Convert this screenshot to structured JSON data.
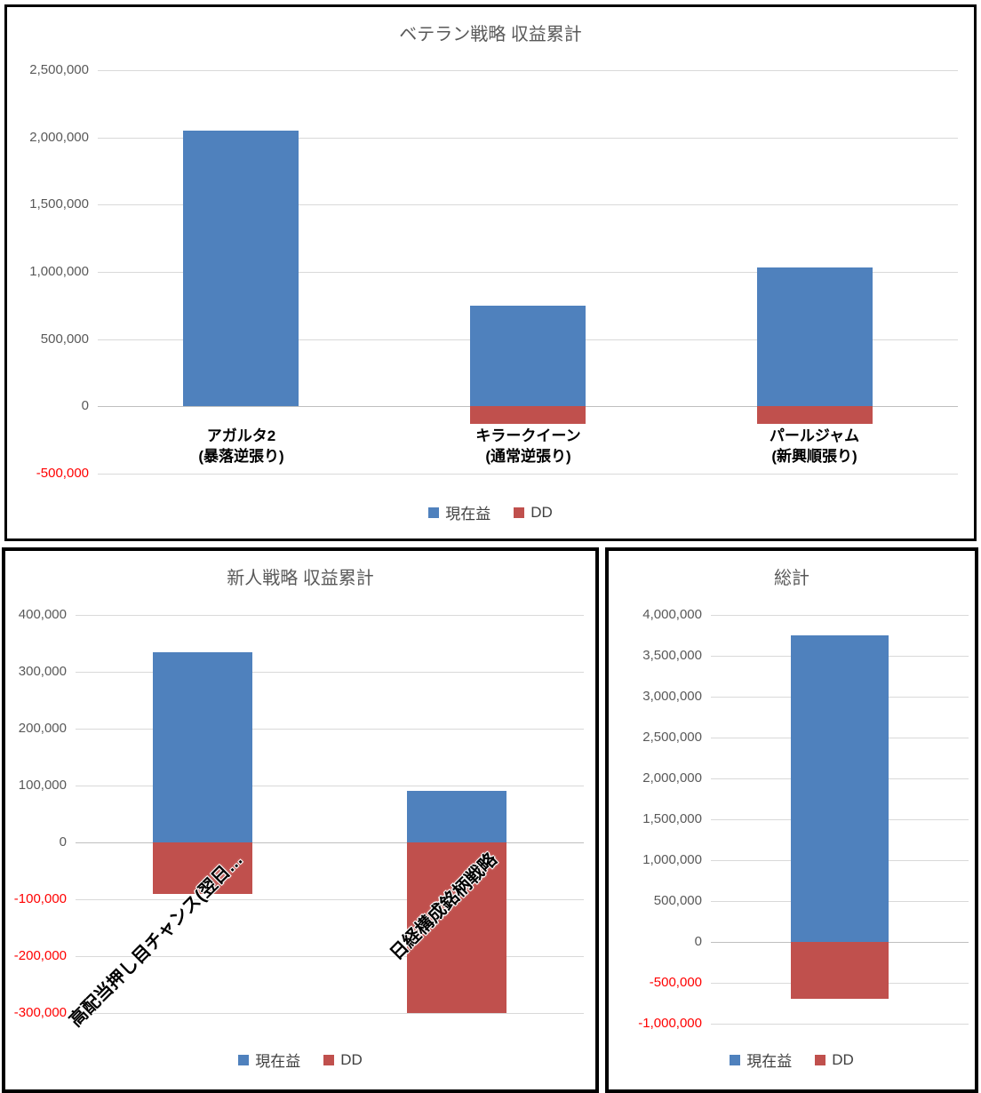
{
  "colors": {
    "bar_profit": "#4F81BD",
    "bar_dd": "#C0504D",
    "gridline": "#D9D9D9",
    "zero_axis": "#BFBFBF",
    "axis_text": "#595959",
    "negative_axis_text": "#FF0000",
    "title_text": "#595959",
    "panel_border": "#000000"
  },
  "chart_data": [
    {
      "type": "bar",
      "title": "ベテラン戦略 収益累計",
      "categories": [
        "アガルタ2\n(暴落逆張り)",
        "キラークイーン\n(通常逆張り)",
        "パールジャム\n(新興順張り)"
      ],
      "series": [
        {
          "name": "現在益",
          "values": [
            2050000,
            750000,
            1030000
          ]
        },
        {
          "name": "DD",
          "values": [
            0,
            -130000,
            -130000
          ]
        }
      ],
      "ylim": [
        -500000,
        2500000
      ],
      "ytick_step": 500000,
      "grid": true,
      "legend_position": "bottom"
    },
    {
      "type": "bar",
      "title": "新人戦略 収益累計",
      "categories": [
        "高配当押し目チャンス(翌日…",
        "日経構成銘柄戦略"
      ],
      "series": [
        {
          "name": "現在益",
          "values": [
            335000,
            90000
          ]
        },
        {
          "name": "DD",
          "values": [
            -90000,
            -300000
          ]
        }
      ],
      "ylim": [
        -300000,
        400000
      ],
      "ytick_step": 100000,
      "grid": true,
      "legend_position": "bottom"
    },
    {
      "type": "bar",
      "title": "総計",
      "categories": [
        ""
      ],
      "series": [
        {
          "name": "現在益",
          "values": [
            3750000
          ]
        },
        {
          "name": "DD",
          "values": [
            -700000
          ]
        }
      ],
      "ylim": [
        -1000000,
        4000000
      ],
      "ytick_step": 500000,
      "grid": true,
      "legend_position": "bottom"
    }
  ]
}
